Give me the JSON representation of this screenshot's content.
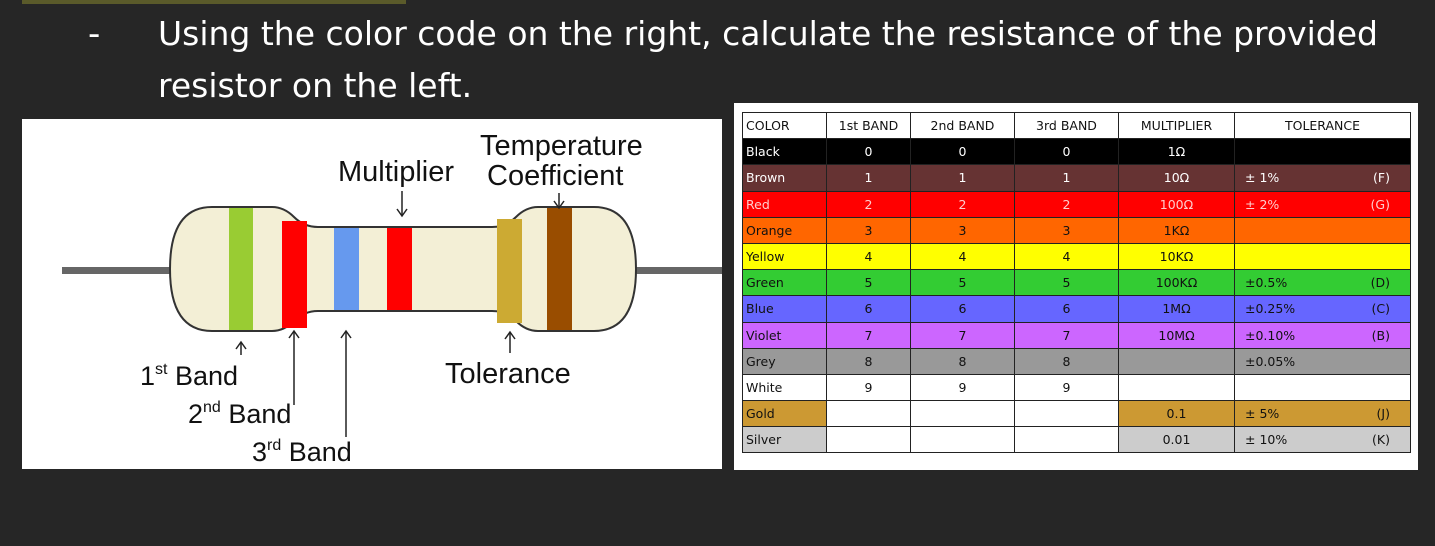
{
  "slide": {
    "bullet": "-",
    "instruction": "Using the color code on the right, calculate the resistance of the provided resistor on the left."
  },
  "diagram": {
    "labels": {
      "temperature": "Temperature",
      "coefficient": "Coefficient",
      "multiplier": "Multiplier",
      "tolerance": "Tolerance",
      "band1_num": "1",
      "band1_sup": "st",
      "band1_word": " Band",
      "band2_num": "2",
      "band2_sup": "nd",
      "band2_word": " Band",
      "band3_num": "3",
      "band3_sup": "rd",
      "band3_word": " Band"
    },
    "colors": {
      "body": "#f3efd6",
      "band1": "#99cc33",
      "band2": "#ff0000",
      "band3": "#6699ee",
      "multiplier": "#ff0000",
      "tolerance": "#ccaa33",
      "temperature": "#994d00",
      "lead": "#666666"
    }
  },
  "table": {
    "headers": [
      "COLOR",
      "1st BAND",
      "2nd BAND",
      "3rd BAND",
      "MULTIPLIER",
      "TOLERANCE"
    ],
    "rows": [
      {
        "color": "Black",
        "b1": "0",
        "b2": "0",
        "b3": "0",
        "mult": "1Ω",
        "tol": "",
        "code": "",
        "bg": "#000000",
        "fg": "#ffffff",
        "empty_fill": false
      },
      {
        "color": "Brown",
        "b1": "1",
        "b2": "1",
        "b3": "1",
        "mult": "10Ω",
        "tol": "±  1%",
        "code": "(F)",
        "bg": "#663333",
        "fg": "#ffffff",
        "empty_fill": false
      },
      {
        "color": "Red",
        "b1": "2",
        "b2": "2",
        "b3": "2",
        "mult": "100Ω",
        "tol": "±  2%",
        "code": "(G)",
        "bg": "#ff0000",
        "fg": "#ffcccc",
        "empty_fill": false
      },
      {
        "color": "Orange",
        "b1": "3",
        "b2": "3",
        "b3": "3",
        "mult": "1KΩ",
        "tol": "",
        "code": "",
        "bg": "#ff6600",
        "fg": "#111111",
        "empty_fill": false
      },
      {
        "color": "Yellow",
        "b1": "4",
        "b2": "4",
        "b3": "4",
        "mult": "10KΩ",
        "tol": "",
        "code": "",
        "bg": "#ffff00",
        "fg": "#111111",
        "empty_fill": false
      },
      {
        "color": "Green",
        "b1": "5",
        "b2": "5",
        "b3": "5",
        "mult": "100KΩ",
        "tol": "±0.5%",
        "code": "(D)",
        "bg": "#33cc33",
        "fg": "#111111",
        "empty_fill": false
      },
      {
        "color": "Blue",
        "b1": "6",
        "b2": "6",
        "b3": "6",
        "mult": "1MΩ",
        "tol": "±0.25%",
        "code": "(C)",
        "bg": "#6666ff",
        "fg": "#111111",
        "empty_fill": false
      },
      {
        "color": "Violet",
        "b1": "7",
        "b2": "7",
        "b3": "7",
        "mult": "10MΩ",
        "tol": "±0.10%",
        "code": "(B)",
        "bg": "#cc66ff",
        "fg": "#111111",
        "empty_fill": false
      },
      {
        "color": "Grey",
        "b1": "8",
        "b2": "8",
        "b3": "8",
        "mult": "",
        "tol": "±0.05%",
        "code": "",
        "bg": "#999999",
        "fg": "#111111",
        "empty_fill": false
      },
      {
        "color": "White",
        "b1": "9",
        "b2": "9",
        "b3": "9",
        "mult": "",
        "tol": "",
        "code": "",
        "bg": "#ffffff",
        "fg": "#111111",
        "empty_fill": false
      },
      {
        "color": "Gold",
        "b1": "",
        "b2": "",
        "b3": "",
        "mult": "0.1",
        "tol": "±  5%",
        "code": "(J)",
        "bg": "#cc9933",
        "fg": "#111111",
        "empty_fill": true
      },
      {
        "color": "Silver",
        "b1": "",
        "b2": "",
        "b3": "",
        "mult": "0.01",
        "tol": "±  10%",
        "code": "(K)",
        "bg": "#cccccc",
        "fg": "#111111",
        "empty_fill": true
      }
    ]
  }
}
